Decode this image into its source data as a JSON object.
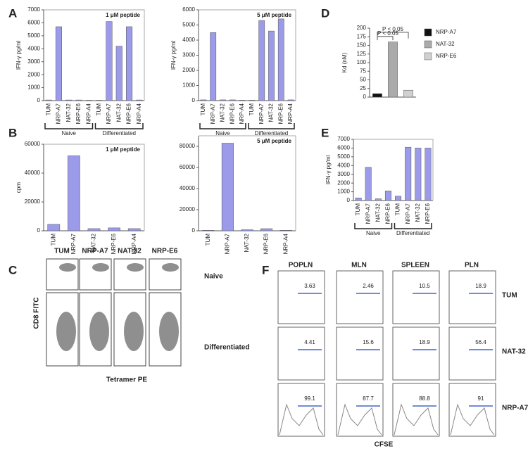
{
  "panel_letters": [
    "A",
    "B",
    "C",
    "D",
    "E",
    "F"
  ],
  "chart_data": [
    {
      "type": "bar",
      "title": "1 μM peptide",
      "y_label": "IFN-γ pg/ml",
      "color": "#9b9bea",
      "categories": [
        "TUM",
        "NRP-A7",
        "NAT-32",
        "NRP-E6",
        "NRP-A4",
        "TUM",
        "NRP-A7",
        "NAT-32",
        "NRP-E6",
        "NRP-A4"
      ],
      "values": [
        50,
        5700,
        50,
        50,
        30,
        30,
        6100,
        4200,
        5700,
        50
      ],
      "group_labels": [
        "Naive",
        "Differentiated"
      ],
      "ylim": [
        0,
        7000
      ],
      "yticks": [
        0,
        1000,
        2000,
        3000,
        4000,
        5000,
        6000,
        7000
      ]
    },
    {
      "type": "bar",
      "title": "5 μM peptide",
      "y_label": "IFN-γ pg/ml",
      "color": "#9b9bea",
      "categories": [
        "TUM",
        "NRP-A7",
        "NAT-32",
        "NRP-E6",
        "NRP-A4",
        "TUM",
        "NRP-A7",
        "NAT-32",
        "NRP-E6",
        "NRP-A4"
      ],
      "values": [
        50,
        4500,
        50,
        50,
        30,
        30,
        5300,
        4600,
        5400,
        50
      ],
      "group_labels": [
        "Naive",
        "Differentiated"
      ],
      "ylim": [
        0,
        6000
      ],
      "yticks": [
        0,
        1000,
        2000,
        3000,
        4000,
        5000,
        6000
      ]
    },
    {
      "type": "bar",
      "title": "1 μM peptide",
      "y_label": "cpm",
      "color": "#9b9bea",
      "categories": [
        "TUM",
        "NRP-A7",
        "NAT-32",
        "NRP-E6",
        "NRP-A4"
      ],
      "values": [
        4500,
        52000,
        1500,
        2000,
        1500
      ],
      "ylim": [
        0,
        60000
      ],
      "yticks": [
        0,
        20000,
        40000,
        60000
      ]
    },
    {
      "type": "bar",
      "title": "5 μM peptide",
      "color": "#9b9bea",
      "categories": [
        "TUM",
        "NRP-A7",
        "NAT-32",
        "NRP-E6",
        "NRP-A4"
      ],
      "values": [
        500,
        83000,
        1000,
        2000,
        500
      ],
      "ylim": [
        0,
        90000
      ],
      "yticks": [
        0,
        20000,
        40000,
        60000,
        80000
      ]
    },
    {
      "type": "bar",
      "y_label": "Kd (nM)",
      "colors": [
        "#111111",
        "#aaaaaa",
        "#d0d0d0"
      ],
      "categories": [
        "NRP-A7",
        "NAT-32",
        "NRP-E6"
      ],
      "values": [
        10,
        160,
        20
      ],
      "legend": "right",
      "annotations": [
        "P < 0.05",
        "P < 0.05"
      ],
      "ylim": [
        0,
        200
      ],
      "yticks": [
        0,
        25,
        50,
        75,
        100,
        125,
        150,
        175,
        200
      ]
    },
    {
      "type": "bar",
      "y_label": "IFN-γ pg/ml",
      "color": "#9b9bea",
      "categories": [
        "TUM",
        "NRP-A7",
        "NAT-32",
        "NRP-E6",
        "TUM",
        "NRP-A7",
        "NAT-32",
        "NRP-E6"
      ],
      "values": [
        300,
        3800,
        200,
        1100,
        500,
        6100,
        6000,
        6000
      ],
      "group_labels": [
        "Naive",
        "Differentiated"
      ],
      "ylim": [
        0,
        7000
      ],
      "yticks": [
        0,
        1000,
        2000,
        3000,
        4000,
        5000,
        6000,
        7000
      ]
    }
  ],
  "panel_c": {
    "columns": [
      "TUM",
      "NRP-A7",
      "NAT-32",
      "NRP-E6"
    ],
    "rows": [
      "Naive",
      "Differentiated"
    ],
    "y_label": "CD8 FITC",
    "x_label": "Tetramer PE"
  },
  "panel_f": {
    "columns": [
      "POPLN",
      "MLN",
      "SPLEEN",
      "PLN"
    ],
    "rows": [
      "TUM",
      "NAT-32",
      "NRP-A7"
    ],
    "values": [
      [
        3.63,
        2.46,
        10.5,
        18.9
      ],
      [
        4.41,
        15.6,
        18.9,
        56.4
      ],
      [
        99.1,
        87.7,
        88.8,
        91
      ]
    ],
    "x_label": "CFSE"
  }
}
